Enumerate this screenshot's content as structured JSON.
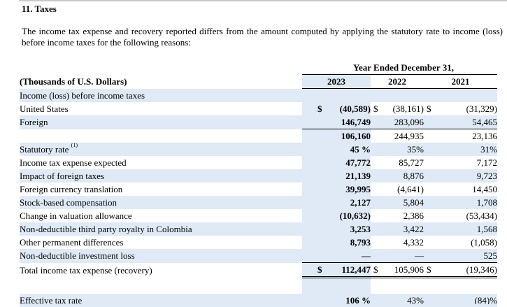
{
  "section": {
    "title": "11. Taxes"
  },
  "intro": "The income tax expense and recovery reported differs from the amount computed by applying the statutory rate to income (loss) before income taxes for the following reasons:",
  "header": {
    "group_label": "Year Ended December 31,",
    "units_label": "(Thousands of U.S. Dollars)",
    "years": [
      "2023",
      "2022",
      "2021"
    ]
  },
  "rows": {
    "income_before_taxes": {
      "label": "Income (loss) before income taxes"
    },
    "united_states": {
      "label": "United States",
      "currency": "$",
      "values": [
        "(40,589)",
        "(38,161)",
        "(31,329)"
      ]
    },
    "foreign": {
      "label": "Foreign",
      "values": [
        "146,749",
        "283,096",
        "54,465"
      ]
    },
    "subtotal": {
      "values": [
        "106,160",
        "244,935",
        "23,136"
      ]
    },
    "statutory_rate": {
      "label": "Statutory rate",
      "footnote": "(1)",
      "values": [
        "45 %",
        "35%",
        "31%"
      ]
    },
    "tax_expected": {
      "label": "Income tax expense expected",
      "values": [
        "47,772",
        "85,727",
        "7,172"
      ]
    },
    "foreign_taxes": {
      "label": "Impact of foreign taxes",
      "values": [
        "21,139",
        "8,876",
        "9,723"
      ]
    },
    "fx_translation": {
      "label": "Foreign currency translation",
      "values": [
        "39,995",
        "(4,641)",
        "14,450"
      ]
    },
    "stock_comp": {
      "label": "Stock-based compensation",
      "values": [
        "2,127",
        "5,804",
        "1,708"
      ]
    },
    "valuation_allowance": {
      "label": "Change in valuation allowance",
      "values": [
        "(10,632)",
        "2,386",
        "(53,434)"
      ]
    },
    "royalty_colombia": {
      "label": "Non-deductible third party royalty in Colombia",
      "values": [
        "3,253",
        "3,422",
        "1,568"
      ]
    },
    "other_permanent": {
      "label": "Other permanent differences",
      "values": [
        "8,793",
        "4,332",
        "(1,058)"
      ]
    },
    "investment_loss": {
      "label": "Non-deductible investment loss",
      "values": [
        "—",
        "—",
        "525"
      ]
    },
    "total_tax": {
      "label": "Total income tax expense (recovery)",
      "currency": "$",
      "values": [
        "112,447",
        "105,906",
        "(19,346)"
      ]
    },
    "effective_rate": {
      "label": "Effective tax rate",
      "values": [
        "106 %",
        "43%",
        "(84)%"
      ]
    }
  }
}
